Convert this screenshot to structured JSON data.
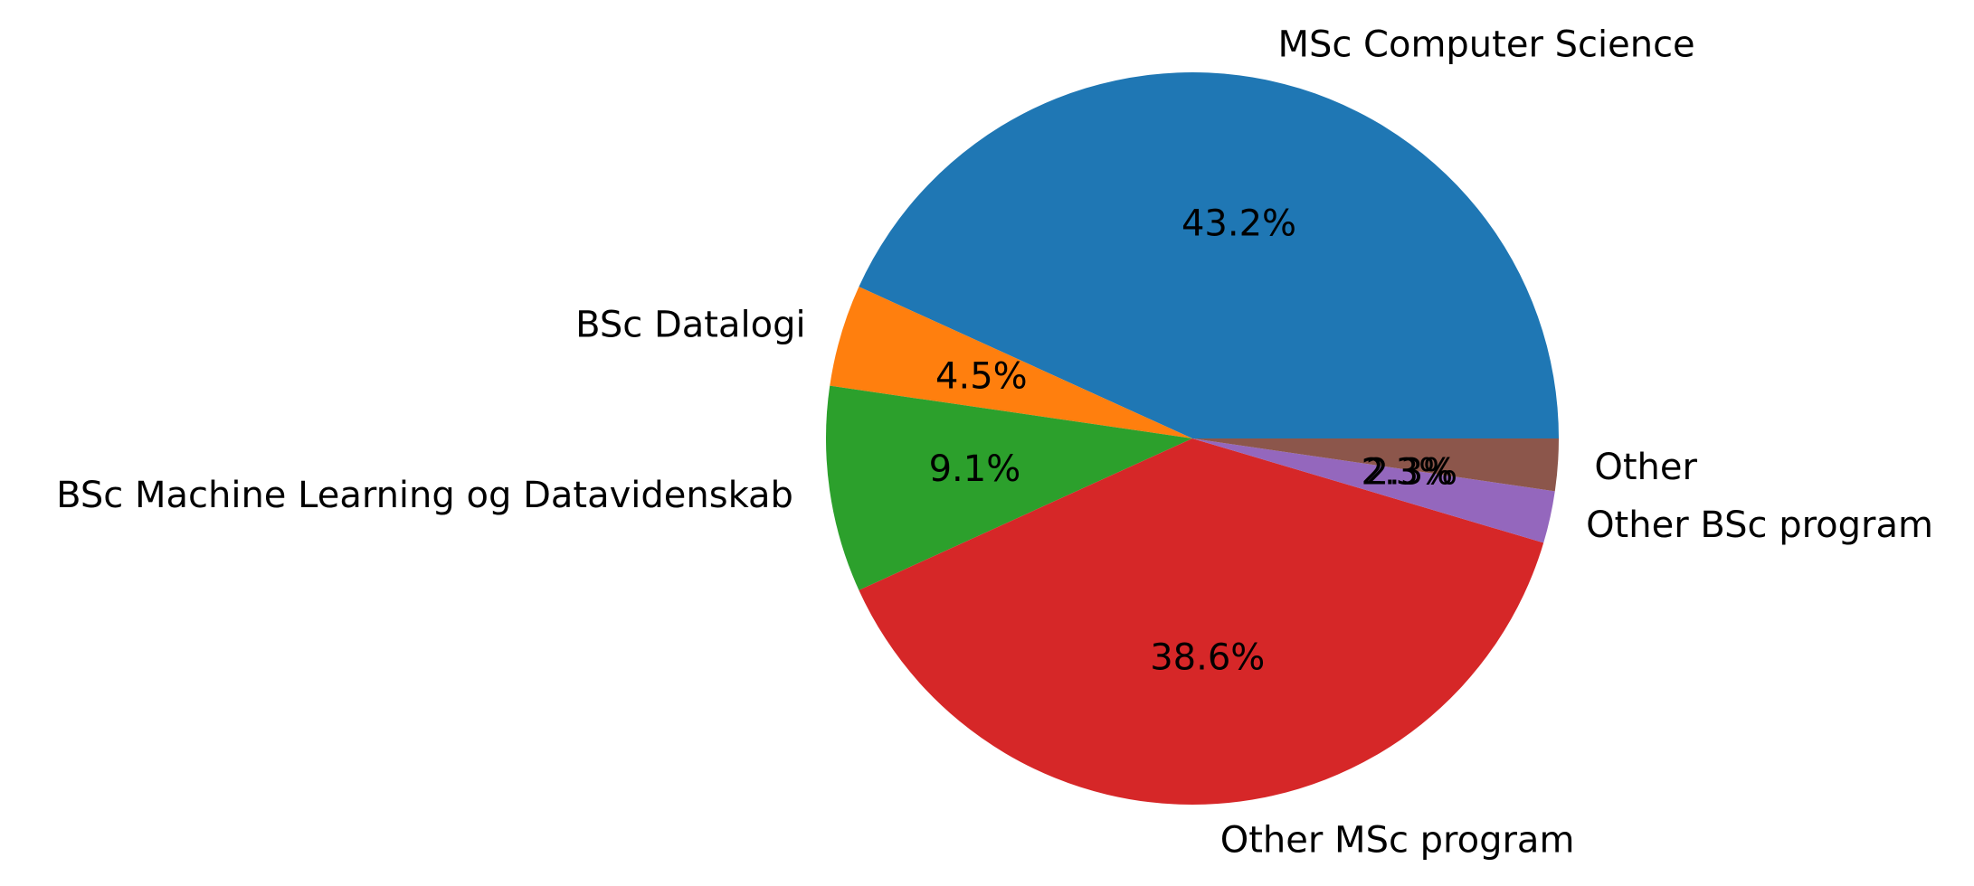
{
  "chart_data": {
    "type": "pie",
    "title": "",
    "categories": [
      "MSc Computer Science",
      "BSc Datalogi",
      "BSc Machine Learning og Datavidenskab",
      "Other MSc program",
      "Other BSc program",
      "Other"
    ],
    "values": [
      43.2,
      4.5,
      9.1,
      38.6,
      2.3,
      2.3
    ],
    "percent_labels": [
      "43.2%",
      "4.5%",
      "9.1%",
      "38.6%",
      "2.3%",
      "2.3%"
    ],
    "colors": [
      "#1f77b4",
      "#ff7f0e",
      "#2ca02c",
      "#d62728",
      "#9467bd",
      "#8c564b"
    ],
    "start_angle_deg": 0,
    "direction": "counterclockwise",
    "legend": "none"
  }
}
